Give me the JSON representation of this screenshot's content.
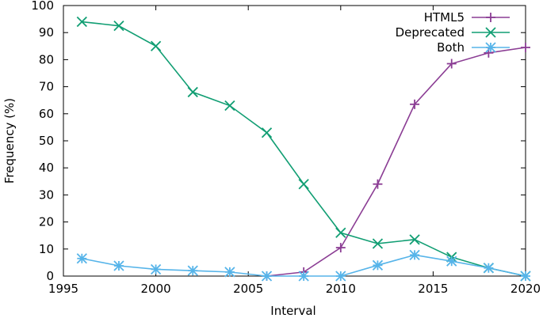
{
  "chart_data": {
    "type": "line",
    "xlabel": "Interval",
    "ylabel": "Frequency (%)",
    "xlim": [
      1995,
      2020
    ],
    "ylim": [
      0,
      100
    ],
    "xticks": [
      1995,
      2000,
      2005,
      2010,
      2015,
      2020
    ],
    "yticks": [
      0,
      10,
      20,
      30,
      40,
      50,
      60,
      70,
      80,
      90,
      100
    ],
    "grid": false,
    "legend_position": "top-right",
    "series": [
      {
        "name": "HTML5",
        "color": "#8b3d94",
        "marker": "plus",
        "x": [
          2006,
          2008,
          2010,
          2012,
          2014,
          2016,
          2018,
          2020
        ],
        "y": [
          0,
          1.5,
          10.5,
          34,
          63.5,
          78.5,
          82.5,
          84.5
        ]
      },
      {
        "name": "Deprecated",
        "color": "#119e73",
        "marker": "x",
        "x": [
          1996,
          1998,
          2000,
          2002,
          2004,
          2006,
          2008,
          2010,
          2012,
          2014,
          2016,
          2018,
          2020
        ],
        "y": [
          94,
          92.5,
          85,
          68,
          63,
          53,
          34,
          16,
          12,
          13.5,
          7,
          3,
          0
        ]
      },
      {
        "name": "Both",
        "color": "#56b4e9",
        "marker": "star",
        "x": [
          1996,
          1998,
          2000,
          2002,
          2004,
          2006,
          2008,
          2010,
          2012,
          2014,
          2016,
          2018,
          2020
        ],
        "y": [
          6.5,
          3.8,
          2.5,
          2,
          1.5,
          0,
          0,
          0,
          4,
          7.8,
          5.5,
          3,
          0
        ]
      }
    ]
  }
}
